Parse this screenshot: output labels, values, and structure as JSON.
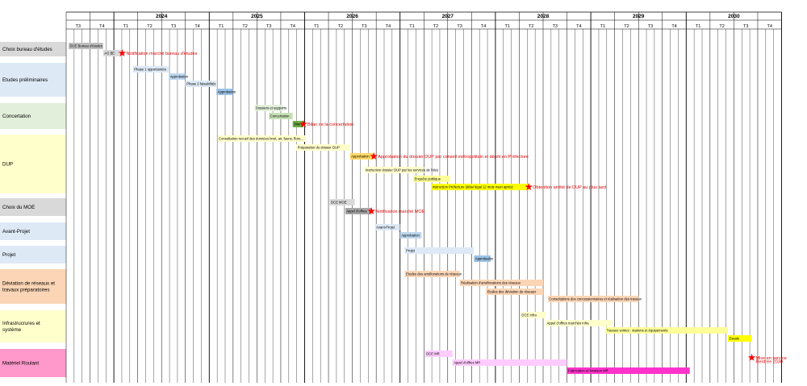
{
  "years": [
    "2024",
    "2025",
    "2026",
    "2027",
    "2028",
    "2029",
    "2030"
  ],
  "quarters": [
    "T3",
    "T4",
    "T1",
    "T2",
    "T3",
    "T4",
    "T1",
    "T2",
    "T3",
    "T4",
    "T1",
    "T2",
    "T3",
    "T4",
    "T1",
    "T2",
    "T3",
    "T4",
    "T1",
    "T2",
    "T3",
    "T4",
    "T1",
    "T2",
    "T3",
    "T4",
    "T1",
    "T2",
    "T3",
    "T4"
  ],
  "phases": [
    {
      "name": "Choix bureau d'études",
      "color": "#d9d9d9"
    },
    {
      "name": "Etudes préliminaires",
      "color": "#dde9f5"
    },
    {
      "name": "Concertation",
      "color": "#e2efda"
    },
    {
      "name": "DUP",
      "color": "#ffffcc"
    },
    {
      "name": "Choix du MOE",
      "color": "#d9d9d9"
    },
    {
      "name": "Avant-Projet",
      "color": "#dde9f5"
    },
    {
      "name": "Projet",
      "color": "#dde9f5"
    },
    {
      "name": "Déviation de réseaux et travaux préparatoires",
      "color": "#fbd5b5"
    },
    {
      "name": "Infrastrucrures et système",
      "color": "#ffffcc"
    },
    {
      "name": "Matériel Roulant",
      "color": "#ff99cc"
    }
  ],
  "tasks": [
    {
      "label": "DCE Bureau d'études",
      "q0": 0.1,
      "q1": 1.55,
      "row": 0,
      "color": "#bfbfbf"
    },
    {
      "label": "AO BE",
      "q0": 1.55,
      "q1": 2.3,
      "row": 1,
      "color": "#d9d9d9"
    },
    {
      "label": "Phase 1 opportunités",
      "q0": 2.8,
      "q1": 4.3,
      "row": 2,
      "color": "#dde9f5"
    },
    {
      "label": "Approbation",
      "q0": 4.3,
      "q1": 5.0,
      "row": 3,
      "color": "#bdd7ee"
    },
    {
      "label": "Phase 2 faisabilités",
      "q0": 5.0,
      "q1": 6.3,
      "row": 4,
      "color": "#dde9f5"
    },
    {
      "label": "Approbation",
      "q0": 6.3,
      "q1": 7.0,
      "row": 5,
      "color": "#9dc3e6"
    },
    {
      "label": "Dossiers et supports",
      "q0": 7.9,
      "q1": 9.1,
      "row": 6,
      "color": "#e2efda"
    },
    {
      "label": "Concertation",
      "q0": 8.5,
      "q1": 9.5,
      "row": 7,
      "color": "#c6e0b4"
    },
    {
      "label": "Bilan",
      "q0": 9.5,
      "q1": 9.95,
      "row": 8,
      "color": "#70ad47"
    },
    {
      "label": "Consultation recueil des données bruit, air, faune, flore...",
      "q0": 6.35,
      "q1": 10.05,
      "row": 9,
      "color": "#ffffcc"
    },
    {
      "label": "Préparation du dossier DUP",
      "q0": 9.65,
      "q1": 11.9,
      "row": 10,
      "color": "#ffffcc"
    },
    {
      "label": "Approbation",
      "q0": 11.9,
      "q1": 12.9,
      "row": 11,
      "color": "#ffd966"
    },
    {
      "label": "Instruction dossier DUP par les services de l'état",
      "q0": 12.5,
      "q1": 15.0,
      "row": 12,
      "color": "#ffffcc"
    },
    {
      "label": "Enquête publique",
      "q0": 14.55,
      "q1": 16.1,
      "row": 13,
      "color": "#ffff99"
    },
    {
      "label": "Instruction Préfecture (délai légal 12 mois maxi après)",
      "q0": 15.3,
      "q1": 19.4,
      "row": 14,
      "color": "#ffff00"
    },
    {
      "label": "DCE MOE",
      "q0": 11.05,
      "q1": 12.1,
      "row": 15,
      "color": "#d9d9d9"
    },
    {
      "label": "Appel d'offres",
      "q0": 11.7,
      "q1": 12.8,
      "row": 16,
      "color": "#a6a6a6"
    },
    {
      "label": "Avant-Projet",
      "q0": 12.95,
      "q1": 14.0,
      "row": 17,
      "color": "#dde9f5"
    },
    {
      "label": "Approbation",
      "q0": 14.0,
      "q1": 14.9,
      "row": 18,
      "color": "#bdd7ee"
    },
    {
      "label": "Projet",
      "q0": 14.2,
      "q1": 17.1,
      "row": 19,
      "color": "#dde9f5"
    },
    {
      "label": "Approbation",
      "q0": 17.1,
      "q1": 17.8,
      "row": 20,
      "color": "#9dc3e6"
    },
    {
      "label": "Etudes des améliorations de réseaux",
      "q0": 14.2,
      "q1": 16.5,
      "row": 21,
      "color": "#fbd5b5"
    },
    {
      "label": "Réalisation d'améliorations des réseaux",
      "q0": 16.5,
      "q1": 20.0,
      "row": 22,
      "color": "#fbd5b5"
    },
    {
      "label": "Etudes des déviation de réseaux",
      "q0": 17.6,
      "q1": 20.0,
      "row": 23,
      "color": "#fbd5b5"
    },
    {
      "label": "Consultations des concessionnaires et réalisation des travaux",
      "q0": 20.2,
      "q1": 24.0,
      "row": 24,
      "color": "#fbd5b5"
    },
    {
      "label": "DCE Infra",
      "q0": 19.05,
      "q1": 20.1,
      "row": 25,
      "color": "#ffffcc"
    },
    {
      "label": "Appel d'offres marchés Infra",
      "q0": 20.1,
      "q1": 22.9,
      "row": 26,
      "color": "#ffffcc"
    },
    {
      "label": "Travaux voiries - stations et équipements",
      "q0": 22.6,
      "q1": 27.75,
      "row": 27,
      "color": "#ffff99"
    },
    {
      "label": "Essais",
      "q0": 27.75,
      "q1": 28.75,
      "row": 28,
      "color": "#ffff00"
    },
    {
      "label": "DCE MR",
      "q0": 15.05,
      "q1": 16.2,
      "row": 29,
      "color": "#ffccff"
    },
    {
      "label": "Appel d'offres MR",
      "q0": 16.2,
      "q1": 21.0,
      "row": 30,
      "color": "#ffccff"
    },
    {
      "label": "Fabrication et livraison MR",
      "q0": 21.0,
      "q1": 26.15,
      "row": 31,
      "color": "#ff33cc"
    }
  ],
  "milestones": [
    {
      "label": "Notification marché bureau d'études",
      "q": 2.35,
      "row": 1
    },
    {
      "label": "Bilan de la concertation",
      "q": 9.95,
      "row": 8
    },
    {
      "label": "Approbation du dossier DUP par conseil métropolitain et dépôt en Préfecture",
      "q": 12.9,
      "row": 11
    },
    {
      "label": "Obtention arrêté de DUP au plus tard",
      "q": 19.4,
      "row": 14
    },
    {
      "label": "Notification marché MOE",
      "q": 12.8,
      "row": 16
    },
    {
      "label": "Mise en service",
      "q": 28.75,
      "row": 29,
      "dy": 0.6
    },
    {
      "label": "Rentrée 2030",
      "q": 28.75,
      "row": 30,
      "dy": -0.2,
      "nostar": true
    }
  ]
}
